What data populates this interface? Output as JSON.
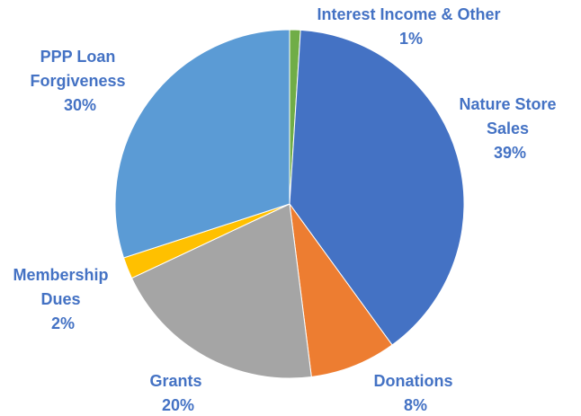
{
  "chart_data": {
    "type": "pie",
    "title": "",
    "label_color": "#4472C4",
    "slices": [
      {
        "name": "Interest Income & Other",
        "name_lines": [
          "Interest Income & Other"
        ],
        "value": 1,
        "label": "1%",
        "color": "#70AD47"
      },
      {
        "name": "Nature Store Sales",
        "name_lines": [
          "Nature Store",
          "Sales"
        ],
        "value": 39,
        "label": "39%",
        "color": "#4472C4"
      },
      {
        "name": "Donations",
        "name_lines": [
          "Donations"
        ],
        "value": 8,
        "label": "8%",
        "color": "#ED7D31"
      },
      {
        "name": "Grants",
        "name_lines": [
          "Grants"
        ],
        "value": 20,
        "label": "20%",
        "color": "#A5A5A5"
      },
      {
        "name": "Membership Dues",
        "name_lines": [
          "Membership",
          "Dues"
        ],
        "value": 2,
        "label": "2%",
        "color": "#FFC000"
      },
      {
        "name": "PPP Loan Forgiveness",
        "name_lines": [
          "PPP Loan",
          "Forgiveness"
        ],
        "value": 30,
        "label": "30%",
        "color": "#5B9BD5"
      }
    ]
  }
}
